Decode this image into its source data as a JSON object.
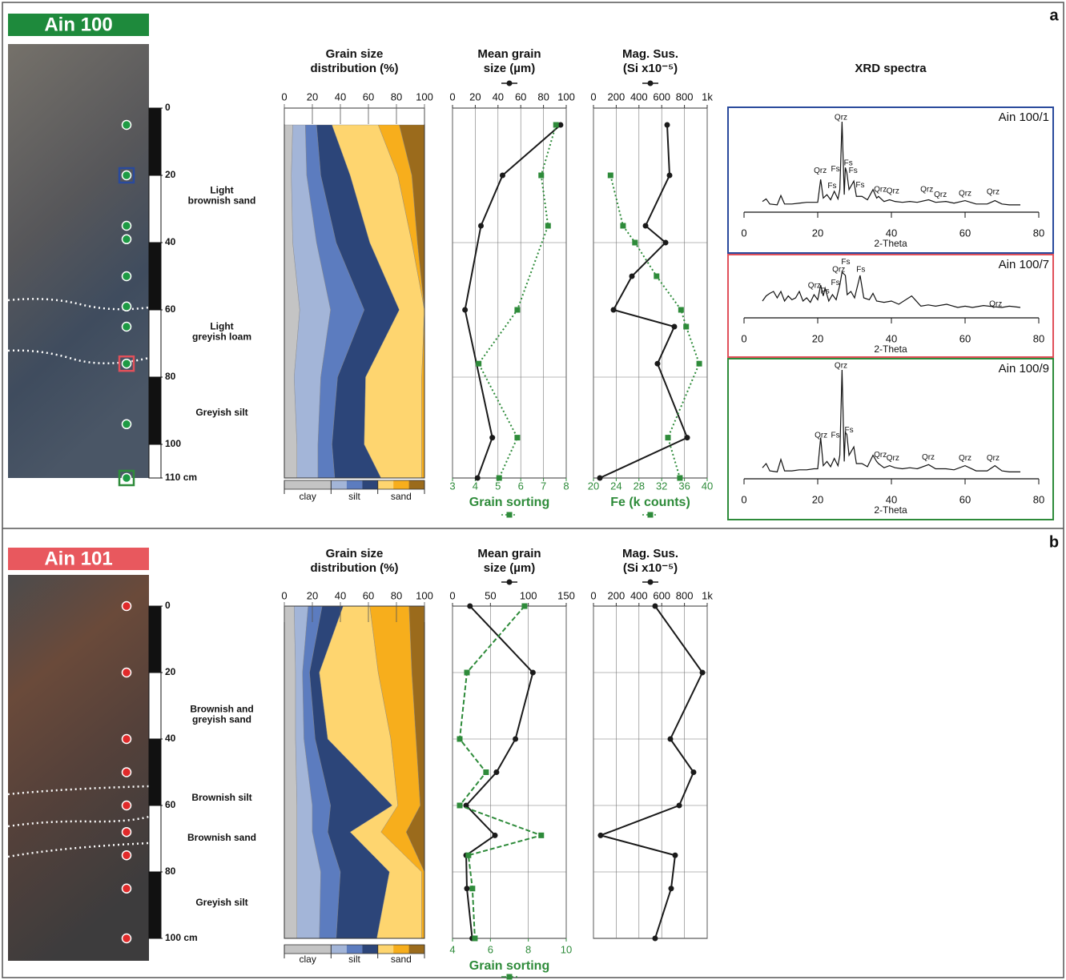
{
  "panels": [
    {
      "letter": "a",
      "site": "Ain 100",
      "site_color": "#1e8a3c",
      "sample_color": "#1e9a44",
      "depth_ticks": [
        0,
        20,
        40,
        60,
        80,
        100,
        {
          "value": 110,
          "label": "110 cm"
        }
      ],
      "samples": [
        5,
        20,
        35,
        39,
        50,
        59,
        65,
        76,
        94,
        110
      ],
      "xrd_samples": [
        {
          "depth": 20,
          "color": "#2a4a9c"
        },
        {
          "depth": 76,
          "color": "#e0505a"
        },
        {
          "depth": 110,
          "color": "#2e8b3a"
        }
      ],
      "layers": [
        [
          "Light",
          "brownish sand"
        ],
        [
          "Light",
          "greyish loam"
        ],
        [
          "Greyish silt"
        ]
      ],
      "xrd_title": "XRD spectra"
    },
    {
      "letter": "b",
      "site": "Ain 101",
      "site_color": "#e8585e",
      "sample_color": "#e02a2a",
      "depth_ticks": [
        0,
        20,
        40,
        60,
        80,
        {
          "value": 100,
          "label": "100 cm"
        }
      ],
      "samples": [
        0,
        20,
        40,
        50,
        60,
        68,
        75,
        85,
        100
      ],
      "xrd_samples": [],
      "layers": [
        [
          "Brownish and",
          "greyish sand"
        ],
        [
          "Brownish silt"
        ],
        [
          "Brownish sand"
        ],
        [
          "Greyish silt"
        ]
      ]
    }
  ],
  "chart_data": [
    {
      "type": "stacked-area",
      "title": [
        "Grain size",
        "distribution (%)"
      ],
      "xlim": [
        0,
        100
      ],
      "xticks": [
        0,
        20,
        40,
        60,
        80,
        100
      ],
      "ylim": [
        0,
        110
      ],
      "depths": [
        5,
        20,
        40,
        60,
        80,
        100,
        110
      ],
      "series": [
        {
          "group": "clay",
          "color": "#c4c4c4",
          "values": [
            6,
            5,
            6,
            11,
            7,
            9,
            9
          ]
        },
        {
          "group": "silt",
          "color": "#a3b5d8",
          "values": [
            9,
            11,
            17,
            22,
            19,
            15,
            15
          ]
        },
        {
          "group": "silt",
          "color": "#5c7cbf",
          "values": [
            8,
            10,
            14,
            24,
            12,
            10,
            12
          ]
        },
        {
          "group": "silt",
          "color": "#2c4579",
          "values": [
            11,
            21,
            24,
            25,
            20,
            23,
            33
          ]
        },
        {
          "group": "sand",
          "color": "#fed56f",
          "values": [
            33,
            34,
            30,
            18,
            40,
            41,
            29
          ]
        },
        {
          "group": "sand",
          "color": "#f7ae1c",
          "values": [
            15,
            10,
            4,
            0,
            2,
            2,
            2
          ]
        },
        {
          "group": "sand",
          "color": "#9b6b1c",
          "values": [
            18,
            9,
            5,
            0,
            0,
            0,
            0
          ]
        }
      ]
    },
    {
      "type": "profile-line",
      "title": [
        "Mean grain",
        "size (µm)"
      ],
      "xlim": [
        0,
        100
      ],
      "xticks": [
        0,
        20,
        40,
        60,
        80,
        100
      ],
      "grid": true,
      "x2lim": [
        3,
        8
      ],
      "x2ticks": [
        3,
        4,
        5,
        6,
        7,
        8
      ],
      "x2label": "Grain sorting",
      "ylim": [
        0,
        110
      ],
      "depth_grid": [
        40,
        80
      ],
      "series": [
        {
          "color": "#1a1a1a",
          "marker": "circle",
          "dash": "solid",
          "axis": "x",
          "depths": [
            5,
            20,
            35,
            60,
            98,
            110
          ],
          "values": [
            95,
            44,
            25,
            11,
            35,
            22
          ]
        },
        {
          "color": "#2e8b3a",
          "marker": "square",
          "dash": "dotted",
          "axis": "x2",
          "depths": [
            5,
            20,
            35,
            60,
            76,
            98,
            110
          ],
          "values": [
            7.55,
            6.9,
            7.2,
            5.85,
            4.15,
            5.85,
            5.05
          ]
        }
      ]
    },
    {
      "type": "profile-line",
      "title": [
        "Mag. Sus.",
        "(Si x10⁻⁵)"
      ],
      "xlim": [
        0,
        1000
      ],
      "xticks": [
        0,
        200,
        400,
        600,
        800,
        {
          "value": 1000,
          "label": "1k"
        }
      ],
      "grid": true,
      "x2lim": [
        20,
        40
      ],
      "x2ticks": [
        20,
        24,
        28,
        32,
        36,
        40
      ],
      "x2label": "Fe (k counts)",
      "ylim": [
        0,
        110
      ],
      "depth_grid": [
        40,
        80
      ],
      "series": [
        {
          "color": "#1a1a1a",
          "marker": "circle",
          "dash": "solid",
          "axis": "x",
          "depths": [
            5,
            20,
            35,
            40,
            50,
            60,
            65,
            76,
            98,
            110
          ],
          "values": [
            648,
            669,
            458,
            634,
            338,
            176,
            711,
            563,
            824,
            56
          ]
        },
        {
          "color": "#2e8b3a",
          "marker": "square",
          "dash": "dotted",
          "axis": "x2",
          "depths": [
            20,
            35,
            40,
            50,
            60,
            65,
            76,
            98,
            110
          ],
          "values": [
            23,
            25.2,
            27.3,
            31.1,
            35.4,
            36.3,
            38.6,
            33.1,
            35.2
          ]
        }
      ]
    },
    {
      "type": "xrd",
      "title": "Ain 100/1",
      "color": "#2a4a9c",
      "xlabel": "2-Theta",
      "xlim": [
        0,
        80
      ],
      "xticks": [
        0,
        20,
        40,
        60,
        80
      ],
      "x": [
        5,
        6,
        7,
        9,
        10,
        11,
        13,
        15,
        17,
        19,
        20,
        20.8,
        21.5,
        22.5,
        23.5,
        24.5,
        25.5,
        26,
        26.6,
        27.2,
        27.5,
        27.9,
        28.5,
        29.8,
        30.5,
        32,
        33.5,
        35,
        36,
        36.5,
        38,
        39.5,
        41,
        43,
        45,
        47,
        50.1,
        52,
        54.8,
        57,
        60,
        63,
        66,
        68.1,
        70,
        72,
        75
      ],
      "values": [
        6,
        9,
        3,
        2,
        13,
        3,
        3,
        4,
        5,
        5,
        5,
        32,
        10,
        14,
        8,
        18,
        9,
        20,
        100,
        14,
        46,
        40,
        20,
        30,
        12,
        12,
        8,
        20,
        10,
        12,
        6,
        8,
        6,
        5,
        6,
        5,
        8,
        5,
        6,
        4,
        7,
        3,
        3,
        7,
        3,
        2,
        2
      ],
      "annotations": [
        {
          "text": "Qrz",
          "x": 26.3,
          "y": 105
        },
        {
          "text": "Qrz",
          "x": 20.7,
          "y": 42
        },
        {
          "text": "Fs",
          "x": 24.8,
          "y": 44
        },
        {
          "text": "Fs",
          "x": 28.3,
          "y": 51
        },
        {
          "text": "Fs",
          "x": 29.6,
          "y": 42
        },
        {
          "text": "Fs",
          "x": 23.9,
          "y": 24
        },
        {
          "text": "Fs",
          "x": 31.5,
          "y": 25
        },
        {
          "text": "Qrz",
          "x": 37,
          "y": 20
        },
        {
          "text": "Qrz",
          "x": 40.4,
          "y": 18
        },
        {
          "text": "Qrz",
          "x": 49.6,
          "y": 20
        },
        {
          "text": "Qrz",
          "x": 53.3,
          "y": 14
        },
        {
          "text": "Qrz",
          "x": 60,
          "y": 15
        },
        {
          "text": "Qrz",
          "x": 67.6,
          "y": 17
        }
      ]
    },
    {
      "type": "xrd",
      "title": "Ain 100/7",
      "color": "#e0505a",
      "xlabel": "2-Theta",
      "xlim": [
        0,
        80
      ],
      "xticks": [
        0,
        20,
        40,
        60,
        80
      ],
      "x": [
        5,
        6,
        7,
        8,
        9,
        10,
        11,
        12,
        13,
        14,
        15,
        16,
        17,
        18,
        19,
        20,
        20.8,
        21.5,
        22,
        23,
        24,
        25,
        26,
        26.6,
        27.5,
        28,
        29,
        30,
        31.5,
        32.5,
        34,
        35,
        36,
        38,
        40,
        42,
        45.5,
        48,
        50,
        52,
        55,
        58,
        60,
        62,
        65,
        68,
        70,
        72,
        75
      ],
      "values": [
        20,
        28,
        32,
        35,
        25,
        35,
        20,
        28,
        22,
        25,
        35,
        20,
        25,
        18,
        30,
        22,
        45,
        28,
        40,
        20,
        30,
        22,
        45,
        65,
        60,
        30,
        35,
        25,
        60,
        25,
        22,
        32,
        20,
        18,
        20,
        15,
        28,
        12,
        14,
        12,
        15,
        10,
        12,
        10,
        13,
        11,
        10,
        12,
        10
      ],
      "annotations": [
        {
          "text": "Fs",
          "x": 27.6,
          "y": 81
        },
        {
          "text": "Qrz",
          "x": 25.7,
          "y": 69
        },
        {
          "text": "Fs",
          "x": 24.8,
          "y": 48
        },
        {
          "text": "Fs",
          "x": 22,
          "y": 35
        },
        {
          "text": "Qrz",
          "x": 19.1,
          "y": 44
        },
        {
          "text": "Fs",
          "x": 31.7,
          "y": 69
        },
        {
          "text": "Qrz",
          "x": 68.3,
          "y": 15
        }
      ]
    },
    {
      "type": "xrd",
      "title": "Ain 100/9",
      "color": "#2e8b3a",
      "xlabel": "2-Theta",
      "xlim": [
        0,
        80
      ],
      "xticks": [
        0,
        20,
        40,
        60,
        80
      ],
      "x": [
        5,
        6,
        7,
        9,
        10,
        11,
        13,
        15,
        17,
        19,
        20,
        20.8,
        21.5,
        22.5,
        23.5,
        24.5,
        25.5,
        26,
        26.6,
        27.2,
        27.5,
        27.9,
        28.5,
        29.8,
        30.5,
        32,
        33.5,
        35,
        36,
        36.5,
        38,
        39.5,
        41,
        43,
        45,
        47,
        50.1,
        52,
        54.8,
        57,
        60,
        63,
        66,
        68.1,
        70,
        72,
        75
      ],
      "values": [
        6,
        10,
        3,
        2,
        14,
        3,
        3,
        4,
        4,
        5,
        5,
        35,
        8,
        12,
        7,
        15,
        8,
        18,
        100,
        12,
        40,
        38,
        18,
        26,
        10,
        10,
        7,
        18,
        12,
        10,
        6,
        8,
        6,
        5,
        6,
        5,
        9,
        5,
        5,
        4,
        8,
        3,
        3,
        8,
        3,
        2,
        2
      ],
      "annotations": [
        {
          "text": "Qrz",
          "x": 26.3,
          "y": 104
        },
        {
          "text": "Qrz",
          "x": 20.9,
          "y": 37
        },
        {
          "text": "Fs",
          "x": 24.8,
          "y": 37
        },
        {
          "text": "Fs",
          "x": 28.5,
          "y": 42
        },
        {
          "text": "Qrz",
          "x": 37,
          "y": 18
        },
        {
          "text": "Qrz",
          "x": 40.4,
          "y": 15
        },
        {
          "text": "Qrz",
          "x": 50,
          "y": 16
        },
        {
          "text": "Qrz",
          "x": 60,
          "y": 15
        },
        {
          "text": "Qrz",
          "x": 67.6,
          "y": 15
        }
      ]
    },
    {
      "type": "stacked-area",
      "title": [
        "Grain size",
        "distribution (%)"
      ],
      "xlim": [
        0,
        100
      ],
      "xticks": [
        0,
        20,
        40,
        60,
        80,
        100
      ],
      "ylim": [
        0,
        100
      ],
      "depths": [
        0,
        20,
        40,
        60,
        68,
        80,
        100
      ],
      "series": [
        {
          "group": "clay",
          "color": "#c4c4c4",
          "values": [
            7,
            8,
            8,
            9,
            9,
            9,
            9
          ]
        },
        {
          "group": "silt",
          "color": "#a3b5d8",
          "values": [
            10,
            5,
            6,
            11,
            11,
            17,
            16
          ]
        },
        {
          "group": "silt",
          "color": "#5c7cbf",
          "values": [
            10,
            5,
            8,
            13,
            11,
            14,
            12
          ]
        },
        {
          "group": "silt",
          "color": "#2c4579",
          "values": [
            15,
            7,
            9,
            44,
            16,
            35,
            29
          ]
        },
        {
          "group": "sand",
          "color": "#fed56f",
          "values": [
            19,
            42,
            45,
            4,
            22,
            23,
            32
          ]
        },
        {
          "group": "sand",
          "color": "#f7ae1c",
          "values": [
            28,
            24,
            18,
            16,
            18,
            2,
            2
          ]
        },
        {
          "group": "sand",
          "color": "#9b6b1c",
          "values": [
            11,
            9,
            6,
            3,
            13,
            0,
            0
          ]
        }
      ]
    },
    {
      "type": "profile-line",
      "title": [
        "Mean grain",
        "size (µm)"
      ],
      "xlim": [
        0,
        150
      ],
      "xticks": [
        0,
        50,
        100,
        150
      ],
      "grid": true,
      "x2lim": [
        4,
        10
      ],
      "x2ticks": [
        4,
        6,
        8,
        10
      ],
      "x2label": "Grain sorting",
      "ylim": [
        0,
        100
      ],
      "depth_grid": [
        20,
        40,
        60,
        80
      ],
      "series": [
        {
          "color": "#1a1a1a",
          "marker": "circle",
          "dash": "solid",
          "axis": "x",
          "depths": [
            0,
            20,
            40,
            50,
            60,
            69,
            75,
            85,
            100
          ],
          "values": [
            23,
            106,
            83,
            58,
            18,
            56,
            18,
            19,
            26
          ]
        },
        {
          "color": "#2e8b3a",
          "marker": "square",
          "dash": "dashed",
          "axis": "x2",
          "depths": [
            0,
            20,
            40,
            50,
            60,
            69,
            75,
            85,
            100
          ],
          "values": [
            7.8,
            4.76,
            4.38,
            5.77,
            4.38,
            8.68,
            4.84,
            5.05,
            5.18
          ]
        }
      ]
    },
    {
      "type": "profile-line",
      "title": [
        "Mag. Sus.",
        "(Si x10⁻⁵)"
      ],
      "xlim": [
        0,
        1000
      ],
      "xticks": [
        0,
        200,
        400,
        600,
        800,
        {
          "value": 1000,
          "label": "1k"
        }
      ],
      "grid": true,
      "ylim": [
        0,
        100
      ],
      "depth_grid": [
        20,
        40,
        60,
        80
      ],
      "series": [
        {
          "color": "#1a1a1a",
          "marker": "circle",
          "dash": "solid",
          "axis": "x",
          "depths": [
            0,
            20,
            40,
            50,
            60,
            69,
            75,
            85,
            100
          ],
          "values": [
            542,
            958,
            676,
            880,
            754,
            63,
            718,
            683,
            542
          ]
        }
      ]
    }
  ]
}
